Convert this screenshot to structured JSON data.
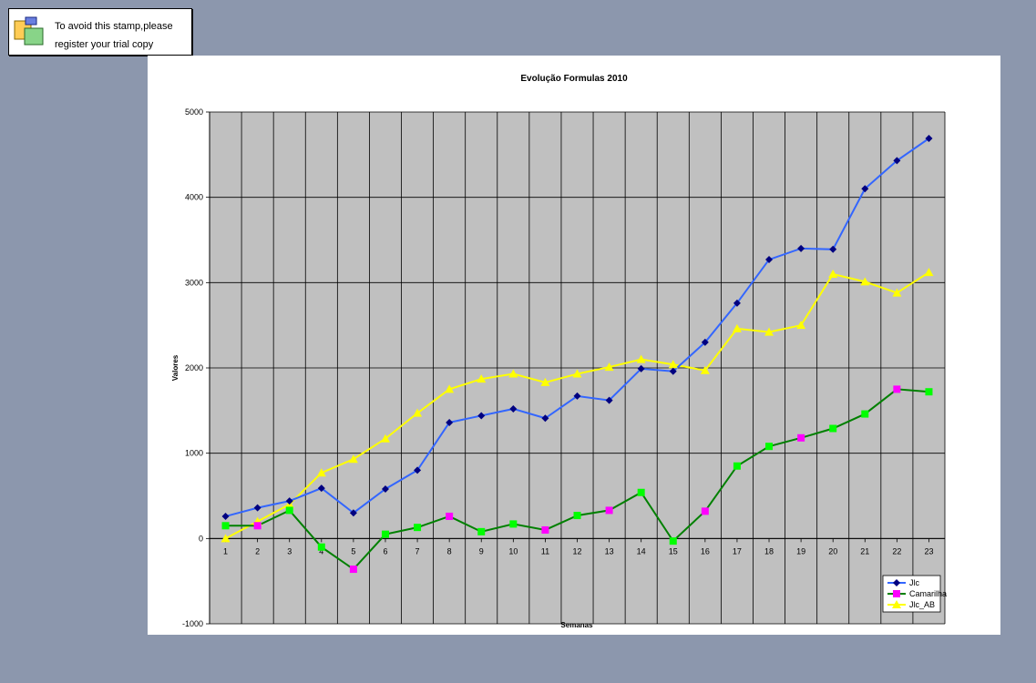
{
  "stamp": {
    "line1": "To avoid this stamp,please",
    "line2": "register your trial copy",
    "icon": "overlapping-windows-icon"
  },
  "colors": {
    "background": "#8c97ad",
    "plot_area": "#c0c0c0",
    "Jlc": "#3366ff",
    "Jlc_marker": "#000080",
    "Camarilha": "#008000",
    "Camarilha_marker_positive": "#00ff00",
    "Camarilha_marker_negative": "#ff00ff",
    "Jlc_AB": "#ffff00"
  },
  "chart_data": {
    "type": "line",
    "title": "Evolução Formulas 2010",
    "xlabel": "Semanas",
    "ylabel": "Valores",
    "ylim": [
      -1000,
      5000
    ],
    "yticks": [
      -1000,
      0,
      1000,
      2000,
      3000,
      4000,
      5000
    ],
    "grid": true,
    "legend_position": "bottom-right",
    "categories": [
      "1",
      "2",
      "3",
      "4",
      "5",
      "6",
      "7",
      "8",
      "9",
      "10",
      "11",
      "12",
      "13",
      "14",
      "15",
      "16",
      "17",
      "18",
      "19",
      "20",
      "21",
      "22",
      "23"
    ],
    "series": [
      {
        "name": "Jlc",
        "marker": "diamond",
        "values": [
          260,
          360,
          440,
          590,
          300,
          580,
          800,
          1360,
          1440,
          1520,
          1410,
          1670,
          1620,
          1990,
          1960,
          2300,
          2760,
          3270,
          3400,
          3390,
          4100,
          4430,
          4690
        ]
      },
      {
        "name": "Camarilha",
        "marker": "square",
        "values": [
          150,
          150,
          330,
          -100,
          -360,
          50,
          130,
          260,
          80,
          170,
          100,
          270,
          330,
          540,
          -30,
          320,
          850,
          1080,
          1180,
          1290,
          1460,
          1750,
          1720
        ]
      },
      {
        "name": "Jlc_AB",
        "marker": "triangle",
        "values": [
          0,
          200,
          400,
          770,
          930,
          1170,
          1470,
          1750,
          1870,
          1930,
          1830,
          1930,
          2010,
          2100,
          2040,
          1970,
          2460,
          2420,
          2500,
          3100,
          3010,
          2880,
          3120
        ]
      }
    ]
  }
}
